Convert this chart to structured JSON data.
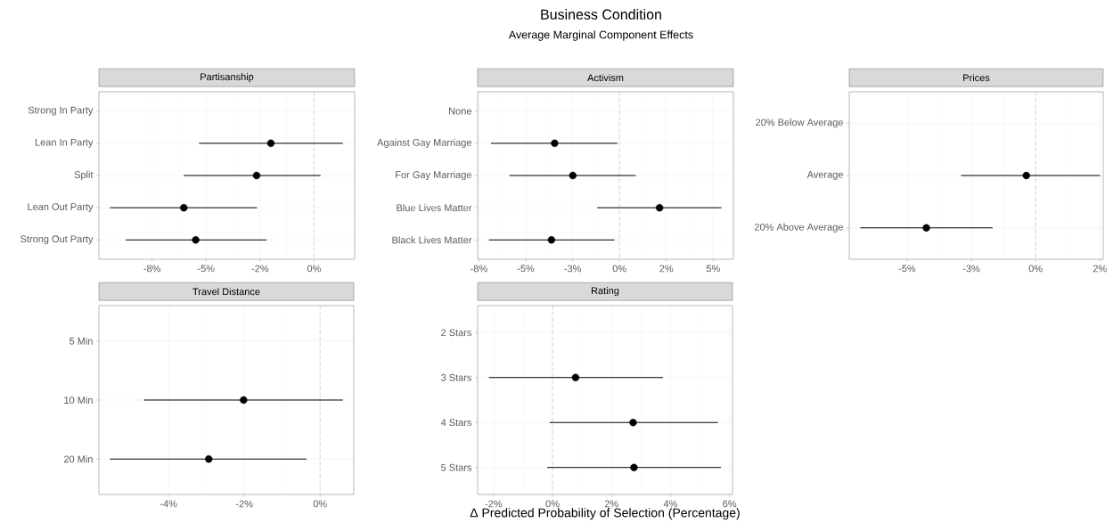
{
  "chart_data": [
    {
      "type": "scatter",
      "orientation": "horizontal",
      "title": "Partisanship",
      "annotations": [
        "Business Condition",
        "Average Marginal Component Effects"
      ],
      "categories": [
        "Strong In Party",
        "Lean In Party",
        "Split",
        "Lean Out Party",
        "Strong Out Party"
      ],
      "values": [
        null,
        -2.0,
        -2.66,
        -6.03,
        -5.48
      ],
      "errors": [
        null,
        [
          -5.33,
          1.33
        ],
        [
          -6.03,
          0.3
        ],
        [
          -9.45,
          -2.64
        ],
        [
          -8.72,
          -2.2
        ]
      ],
      "xlim": [
        -9.96,
        1.88
      ],
      "xticks": [
        {
          "value": -7.5,
          "label": "-8%"
        },
        {
          "value": -5,
          "label": "-5%"
        },
        {
          "value": -2.5,
          "label": "-2%"
        },
        {
          "value": 0,
          "label": "0%"
        }
      ],
      "grid": true,
      "marker": "circle",
      "ref_lines": [
        {
          "axis": "x",
          "value": 0,
          "line_style": "dashed",
          "color": "#bdbdbd"
        }
      ]
    },
    {
      "type": "scatter",
      "orientation": "horizontal",
      "title": "Activism",
      "categories": [
        "None",
        "Against Gay Marriage",
        "For Gay Marriage",
        "Blue Lives Matter",
        "Black Lives Matter"
      ],
      "values": [
        null,
        -3.46,
        -2.49,
        2.14,
        -3.63
      ],
      "errors": [
        null,
        [
          -6.86,
          -0.11
        ],
        [
          -5.87,
          0.87
        ],
        [
          -1.19,
          5.44
        ],
        [
          -6.97,
          -0.27
        ]
      ],
      "xlim": [
        -7.57,
        6.08
      ],
      "xticks": [
        {
          "value": -7.5,
          "label": "-8%"
        },
        {
          "value": -5,
          "label": "-5%"
        },
        {
          "value": -2.5,
          "label": "-3%"
        },
        {
          "value": 0,
          "label": "0%"
        },
        {
          "value": 2.5,
          "label": "2%"
        },
        {
          "value": 5,
          "label": "5%"
        }
      ],
      "grid": true,
      "marker": "circle",
      "ref_lines": [
        {
          "axis": "x",
          "value": 0,
          "line_style": "dashed",
          "color": "#bdbdbd"
        }
      ]
    },
    {
      "type": "scatter",
      "orientation": "horizontal",
      "title": "Prices",
      "categories": [
        "20% Below Average",
        "Average",
        "20% Above Average"
      ],
      "values": [
        null,
        -0.36,
        -4.25
      ],
      "errors": [
        null,
        [
          -2.9,
          2.51
        ],
        [
          -6.82,
          -1.67
        ]
      ],
      "xlim": [
        -7.25,
        2.63
      ],
      "xticks": [
        {
          "value": -5,
          "label": "-5%"
        },
        {
          "value": -2.5,
          "label": "-3%"
        },
        {
          "value": 0,
          "label": "0%"
        },
        {
          "value": 2.5,
          "label": "2%"
        }
      ],
      "grid": true,
      "marker": "circle",
      "ref_lines": [
        {
          "axis": "x",
          "value": 0,
          "line_style": "dashed",
          "color": "#bdbdbd"
        }
      ]
    },
    {
      "type": "scatter",
      "orientation": "horizontal",
      "title": "Travel Distance",
      "categories": [
        "5 Min",
        "10 Min",
        "20 Min"
      ],
      "values": [
        null,
        -2.02,
        -2.94
      ],
      "errors": [
        null,
        [
          -4.65,
          0.6
        ],
        [
          -5.55,
          -0.36
        ]
      ],
      "xlim": [
        -5.84,
        0.89
      ],
      "xticks": [
        {
          "value": -4,
          "label": "-4%"
        },
        {
          "value": -2,
          "label": "-2%"
        },
        {
          "value": 0,
          "label": "0%"
        }
      ],
      "grid": true,
      "marker": "circle",
      "ref_lines": [
        {
          "axis": "x",
          "value": 0,
          "line_style": "dashed",
          "color": "#bdbdbd"
        }
      ]
    },
    {
      "type": "scatter",
      "orientation": "horizontal",
      "title": "Rating",
      "xlabel": "Δ Predicted Probability of Selection (Percentage)",
      "categories": [
        "2 Stars",
        "3 Stars",
        "4 Stars",
        "5 Stars"
      ],
      "values": [
        null,
        0.78,
        2.73,
        2.76
      ],
      "errors": [
        null,
        [
          -2.16,
          3.74
        ],
        [
          -0.1,
          5.6
        ],
        [
          -0.18,
          5.71
        ]
      ],
      "xlim": [
        -2.54,
        6.1
      ],
      "xticks": [
        {
          "value": -2,
          "label": "-2%"
        },
        {
          "value": 0,
          "label": "0%"
        },
        {
          "value": 2,
          "label": "2%"
        },
        {
          "value": 4,
          "label": "4%"
        },
        {
          "value": 6,
          "label": "6%"
        }
      ],
      "grid": true,
      "marker": "circle",
      "ref_lines": [
        {
          "axis": "x",
          "value": 0,
          "line_style": "dashed",
          "color": "#bdbdbd"
        }
      ]
    }
  ]
}
